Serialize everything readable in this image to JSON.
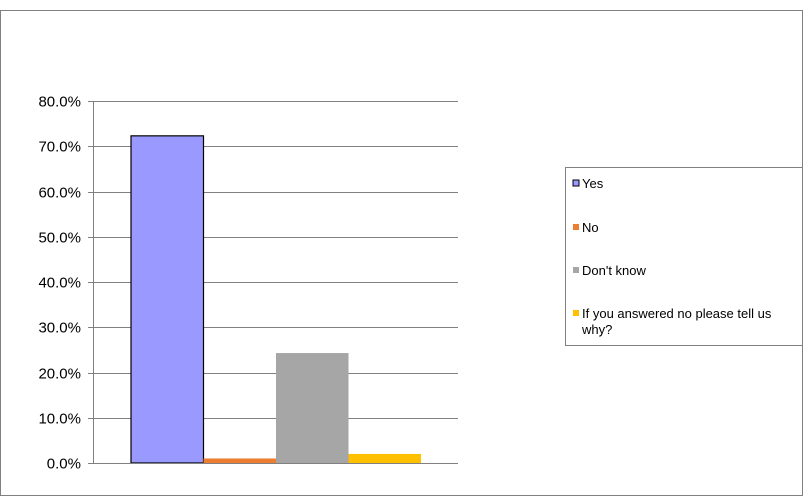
{
  "chart_data": {
    "type": "bar",
    "categories": [
      "Yes",
      "No",
      "Don't know",
      "If you answered no please tell us why?"
    ],
    "series": [
      {
        "name": "Yes",
        "value": 72.3,
        "color": "#9999ff"
      },
      {
        "name": "No",
        "value": 1.0,
        "color": "#ed7d31"
      },
      {
        "name": "Don't know",
        "value": 24.3,
        "color": "#a6a6a6"
      },
      {
        "name": "If you answered no please tell us why?",
        "value": 2.0,
        "color": "#ffc000"
      }
    ],
    "ylim": [
      0,
      80
    ],
    "yticks": [
      "0.0%",
      "10.0%",
      "20.0%",
      "30.0%",
      "40.0%",
      "50.0%",
      "60.0%",
      "70.0%",
      "80.0%"
    ],
    "legend": {
      "placement": "right",
      "entries": [
        "Yes",
        "No",
        "Don't know",
        "If you answered no please tell us why?"
      ],
      "wrapped_last": [
        "If you answered no please tell us",
        "why?"
      ]
    },
    "grid": true,
    "title": "",
    "xlabel": "",
    "ylabel": ""
  }
}
